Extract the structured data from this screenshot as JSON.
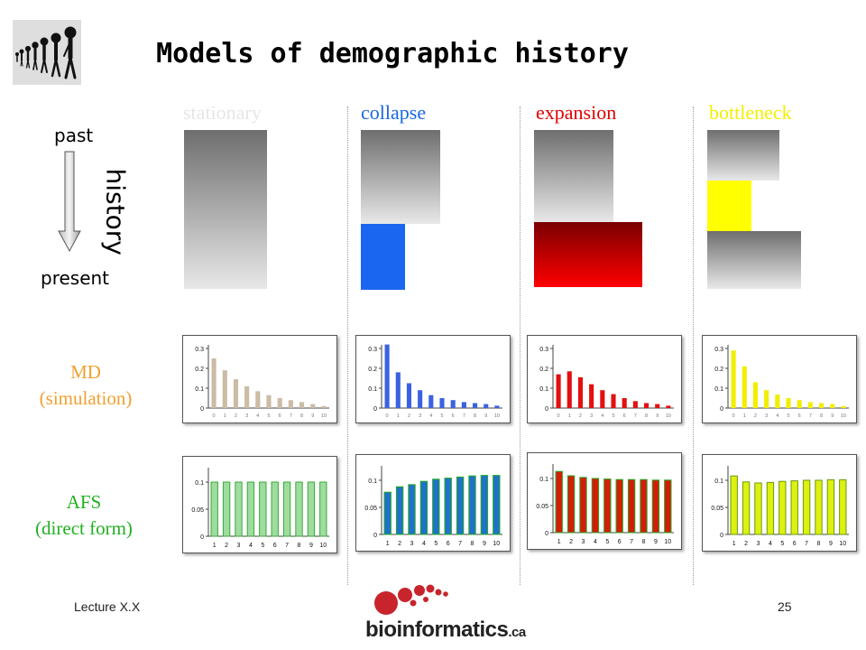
{
  "slide": {
    "title": "Models of demographic history",
    "footer_left": "Lecture X.X",
    "page_number": "25"
  },
  "timeline": {
    "past": "past",
    "present": "present",
    "history": "history"
  },
  "rows": {
    "md": {
      "line1": "MD",
      "line2": "(simulation)",
      "color": "#f0a030"
    },
    "afs": {
      "line1": "AFS",
      "line2": "(direct form)",
      "color": "#20b020"
    }
  },
  "columns": [
    {
      "name": "stationary",
      "color": "#e6e6e6"
    },
    {
      "name": "collapse",
      "color": "#1a66e6"
    },
    {
      "name": "expansion",
      "color": "#e00000"
    },
    {
      "name": "bottleneck",
      "color": "#f2f000"
    }
  ],
  "logo": {
    "text": "bioinformatics",
    "suffix": ".ca"
  },
  "chart_data": [
    {
      "type": "bar",
      "model": "stationary",
      "row": "MD",
      "categories": [
        "0",
        "1",
        "2",
        "3",
        "4",
        "5",
        "6",
        "7",
        "8",
        "9",
        "10"
      ],
      "values": [
        0.25,
        0.19,
        0.145,
        0.11,
        0.085,
        0.065,
        0.05,
        0.04,
        0.03,
        0.02,
        0.01
      ],
      "ylim": [
        0,
        0.3
      ],
      "yticks": [
        "0",
        "0.1",
        "0.2",
        "0.3"
      ],
      "bar_color": "#ccbba5"
    },
    {
      "type": "bar",
      "model": "collapse",
      "row": "MD",
      "categories": [
        "0",
        "1",
        "2",
        "3",
        "4",
        "5",
        "6",
        "7",
        "8",
        "9",
        "10"
      ],
      "values": [
        0.32,
        0.18,
        0.125,
        0.09,
        0.065,
        0.05,
        0.04,
        0.03,
        0.025,
        0.02,
        0.012
      ],
      "ylim": [
        0,
        0.3
      ],
      "yticks": [
        "0",
        "0.1",
        "0.2",
        "0.3"
      ],
      "bar_color": "#3a62e0"
    },
    {
      "type": "bar",
      "model": "expansion",
      "row": "MD",
      "categories": [
        "0",
        "1",
        "2",
        "3",
        "4",
        "5",
        "6",
        "7",
        "8",
        "9",
        "10"
      ],
      "values": [
        0.17,
        0.185,
        0.155,
        0.12,
        0.09,
        0.07,
        0.05,
        0.035,
        0.025,
        0.02,
        0.012
      ],
      "ylim": [
        0,
        0.3
      ],
      "yticks": [
        "0",
        "0.1",
        "0.2",
        "0.3"
      ],
      "bar_color": "#e21010"
    },
    {
      "type": "bar",
      "model": "bottleneck",
      "row": "MD",
      "categories": [
        "0",
        "1",
        "2",
        "3",
        "4",
        "5",
        "6",
        "7",
        "8",
        "9",
        "10"
      ],
      "values": [
        0.29,
        0.21,
        0.13,
        0.09,
        0.068,
        0.05,
        0.04,
        0.03,
        0.025,
        0.02,
        0.01
      ],
      "ylim": [
        0,
        0.3
      ],
      "yticks": [
        "0",
        "0.1",
        "0.2",
        "0.3"
      ],
      "bar_color": "#f2ee00"
    },
    {
      "type": "bar",
      "model": "stationary",
      "row": "AFS",
      "categories": [
        "1",
        "2",
        "3",
        "4",
        "5",
        "6",
        "7",
        "8",
        "9",
        "10"
      ],
      "values": [
        0.1,
        0.1,
        0.1,
        0.1,
        0.1,
        0.1,
        0.1,
        0.1,
        0.1,
        0.1
      ],
      "ylim": [
        0,
        0.12
      ],
      "yticks": [
        "0",
        "0.05",
        "0.1"
      ],
      "bar_color": "#9fdc9f",
      "bar_stroke": "#3aa83a"
    },
    {
      "type": "bar",
      "model": "collapse",
      "row": "AFS",
      "categories": [
        "1",
        "2",
        "3",
        "4",
        "5",
        "6",
        "7",
        "8",
        "9",
        "10"
      ],
      "values": [
        0.078,
        0.088,
        0.092,
        0.098,
        0.102,
        0.104,
        0.106,
        0.108,
        0.109,
        0.109
      ],
      "ylim": [
        0,
        0.12
      ],
      "yticks": [
        "0",
        "0.05",
        "0.1"
      ],
      "bar_color": "#1f72c8",
      "bar_stroke": "#22aa22"
    },
    {
      "type": "bar",
      "model": "expansion",
      "row": "AFS",
      "categories": [
        "1",
        "2",
        "3",
        "4",
        "5",
        "6",
        "7",
        "8",
        "9",
        "10"
      ],
      "values": [
        0.113,
        0.105,
        0.102,
        0.1,
        0.099,
        0.098,
        0.098,
        0.098,
        0.097,
        0.097
      ],
      "ylim": [
        0,
        0.12
      ],
      "yticks": [
        "0",
        "0.05",
        "0.1"
      ],
      "bar_color": "#d21e08",
      "bar_stroke": "#22aa22"
    },
    {
      "type": "bar",
      "model": "bottleneck",
      "row": "AFS",
      "categories": [
        "1",
        "2",
        "3",
        "4",
        "5",
        "6",
        "7",
        "8",
        "9",
        "10"
      ],
      "values": [
        0.108,
        0.097,
        0.095,
        0.096,
        0.098,
        0.099,
        0.1,
        0.1,
        0.101,
        0.101
      ],
      "ylim": [
        0,
        0.12
      ],
      "yticks": [
        "0",
        "0.05",
        "0.1"
      ],
      "bar_color": "#ddf010",
      "bar_stroke": "#6a9a10"
    }
  ]
}
